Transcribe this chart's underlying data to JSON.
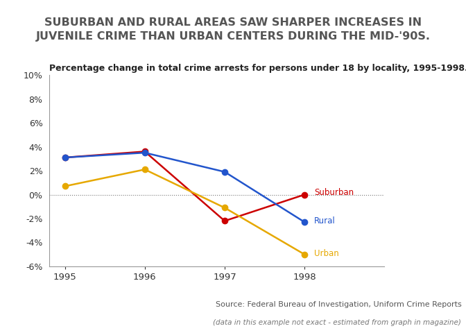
{
  "title": "SUBURBAN AND RURAL AREAS SAW SHARPER INCREASES IN\nJUVENILE CRIME THAN URBAN CENTERS DURING THE MID-'90S.",
  "subtitle": "Percentage change in total crime arrests for persons under 18 by locality, 1995-1998.",
  "source_line1": "Source: Federal Bureau of Investigation, Uniform Crime Reports",
  "source_line2": "(data in this example not exact - estimated from graph in magazine)",
  "years": [
    1995,
    1996,
    1997,
    1998
  ],
  "suburban": [
    3.1,
    3.6,
    -2.2,
    0.0
  ],
  "rural": [
    3.1,
    3.5,
    1.9,
    -2.3
  ],
  "urban": [
    0.7,
    2.1,
    -1.1,
    -5.0
  ],
  "suburban_color": "#cc0000",
  "rural_color": "#2255cc",
  "urban_color": "#e6a800",
  "ylim": [
    -6,
    10
  ],
  "yticks": [
    -6,
    -4,
    -2,
    0,
    2,
    4,
    6,
    8,
    10
  ],
  "ytick_labels": [
    "-6%",
    "-4%",
    "-2%",
    "0%",
    "2%",
    "4%",
    "6%",
    "8%",
    "10%"
  ],
  "background_title": "#e0e0e0",
  "background_plot": "#ffffff",
  "title_fontsize": 11.5,
  "subtitle_fontsize": 9,
  "source_fontsize": 8,
  "source_fontsize2": 7.5
}
